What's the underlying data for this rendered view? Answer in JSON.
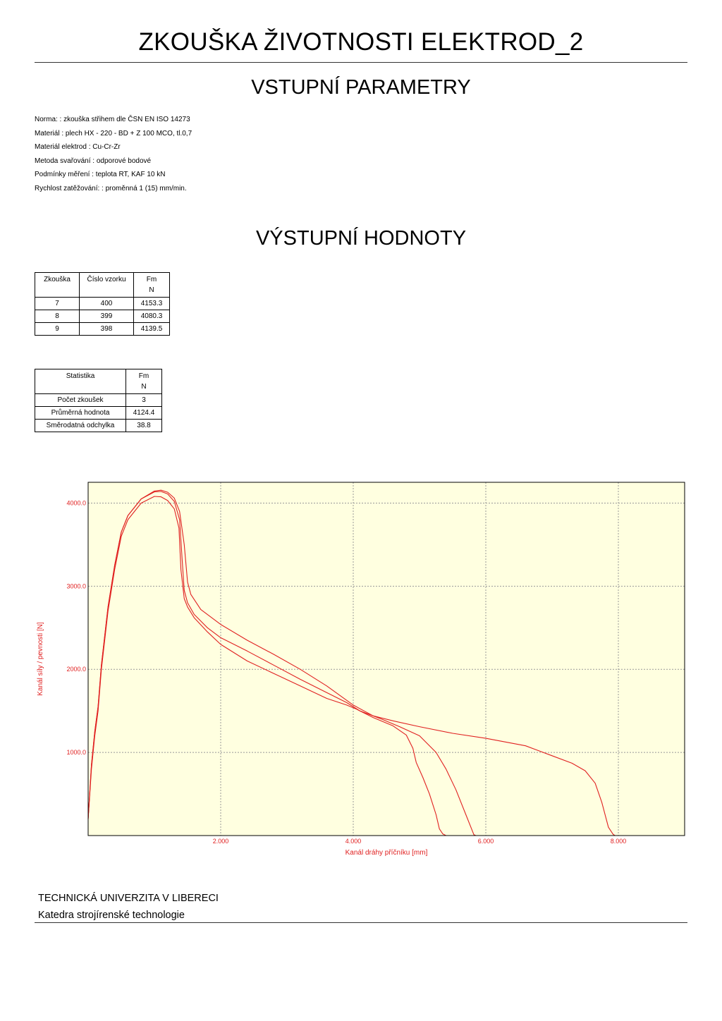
{
  "document": {
    "title": "ZKOUŠKA ŽIVOTNOSTI ELEKTROD_2",
    "input_heading": "VSTUPNÍ PARAMETRY",
    "output_heading": "VÝSTUPNÍ HODNOTY"
  },
  "parameters": [
    "Norma: : zkouška střihem dle ČSN EN ISO 14273",
    "Materiál : plech HX - 220 - BD + Z 100 MCO, tl.0,7",
    "Materiál elektrod : Cu-Cr-Zr",
    "Metoda svařování : odporové bodové",
    "Podmínky měření : teplota RT, KAF 10 kN",
    "Rychlost zatěžování: : proměnná 1 (15) mm/min."
  ],
  "results_table": {
    "headers": [
      "Zkouška",
      "Číslo vzorku",
      "Fm"
    ],
    "unit": "N",
    "rows": [
      [
        "7",
        "400",
        "4153.3"
      ],
      [
        "8",
        "399",
        "4080.3"
      ],
      [
        "9",
        "398",
        "4139.5"
      ]
    ]
  },
  "stats_table": {
    "headers": [
      "Statistika",
      "Fm"
    ],
    "unit": "N",
    "rows": [
      [
        "Počet zkoušek",
        "3"
      ],
      [
        "Průměrná hodnota",
        "4124.4"
      ],
      [
        "Směrodatná odchylka",
        "38.8"
      ]
    ]
  },
  "chart_data": {
    "type": "line",
    "xlabel": "Kanál dráhy příčníku  [mm]",
    "ylabel": "Kanál síly / pevnosti  [N]",
    "xlim": [
      0,
      9.0
    ],
    "ylim": [
      0,
      4250
    ],
    "xticks": [
      2,
      4,
      6,
      8
    ],
    "xtick_labels": [
      "2.000",
      "4.000",
      "6.000",
      "8.000"
    ],
    "yticks": [
      1000,
      2000,
      3000,
      4000
    ],
    "ytick_labels": [
      "1000.0",
      "2000.0",
      "3000.0",
      "4000.0"
    ],
    "grid": true,
    "background": "#ffffe0",
    "line_color": "#e02020",
    "series": [
      {
        "x": [
          0.0,
          0.05,
          0.1,
          0.15,
          0.2,
          0.3,
          0.4,
          0.5,
          0.6,
          0.8,
          1.0,
          1.1,
          1.2,
          1.3,
          1.37,
          1.4,
          1.45,
          1.5,
          1.6,
          1.8,
          2.0,
          2.4,
          2.8,
          3.2,
          3.6,
          3.9,
          4.05,
          4.3,
          4.6,
          4.8,
          4.9,
          4.95,
          5.05,
          5.15,
          5.25,
          5.3,
          5.35,
          5.4,
          5.6
        ],
        "y": [
          200,
          800,
          1200,
          1500,
          2000,
          2700,
          3200,
          3600,
          3800,
          4000,
          4080,
          4075,
          4030,
          3930,
          3700,
          3200,
          2850,
          2750,
          2620,
          2450,
          2300,
          2100,
          1950,
          1800,
          1650,
          1570,
          1520,
          1420,
          1320,
          1210,
          1050,
          880,
          700,
          500,
          250,
          80,
          20,
          0,
          0
        ]
      },
      {
        "x": [
          0.0,
          0.05,
          0.1,
          0.15,
          0.2,
          0.3,
          0.4,
          0.5,
          0.6,
          0.8,
          1.0,
          1.1,
          1.2,
          1.3,
          1.38,
          1.42,
          1.45,
          1.5,
          1.6,
          1.8,
          2.0,
          2.4,
          2.8,
          3.2,
          3.6,
          3.9,
          4.1,
          4.4,
          4.7,
          5.0,
          5.25,
          5.4,
          5.55,
          5.7,
          5.8,
          5.82,
          5.85,
          6.0,
          6.4
        ],
        "y": [
          200,
          850,
          1250,
          1550,
          2050,
          2750,
          3250,
          3650,
          3850,
          4050,
          4135,
          4140,
          4110,
          4020,
          3800,
          3300,
          2950,
          2800,
          2660,
          2500,
          2380,
          2220,
          2050,
          1880,
          1720,
          1600,
          1500,
          1410,
          1310,
          1200,
          1000,
          800,
          550,
          250,
          50,
          10,
          0,
          0,
          0
        ]
      },
      {
        "x": [
          0.0,
          0.05,
          0.1,
          0.15,
          0.2,
          0.3,
          0.4,
          0.5,
          0.6,
          0.8,
          1.0,
          1.1,
          1.2,
          1.3,
          1.38,
          1.45,
          1.5,
          1.55,
          1.7,
          2.0,
          2.4,
          2.8,
          3.2,
          3.6,
          4.0,
          4.3,
          4.6,
          5.0,
          5.5,
          6.0,
          6.6,
          7.0,
          7.3,
          7.5,
          7.65,
          7.75,
          7.85,
          7.92,
          7.95,
          8.2
        ],
        "y": [
          200,
          850,
          1250,
          1550,
          2050,
          2750,
          3250,
          3650,
          3850,
          4050,
          4145,
          4155,
          4130,
          4060,
          3900,
          3500,
          3050,
          2900,
          2720,
          2540,
          2350,
          2180,
          2000,
          1800,
          1570,
          1440,
          1380,
          1310,
          1230,
          1170,
          1080,
          960,
          870,
          780,
          630,
          400,
          100,
          15,
          0,
          0
        ]
      }
    ]
  },
  "footer": {
    "university": "TECHNICKÁ UNIVERZITA V LIBERECI",
    "department": "Katedra strojírenské technologie"
  }
}
